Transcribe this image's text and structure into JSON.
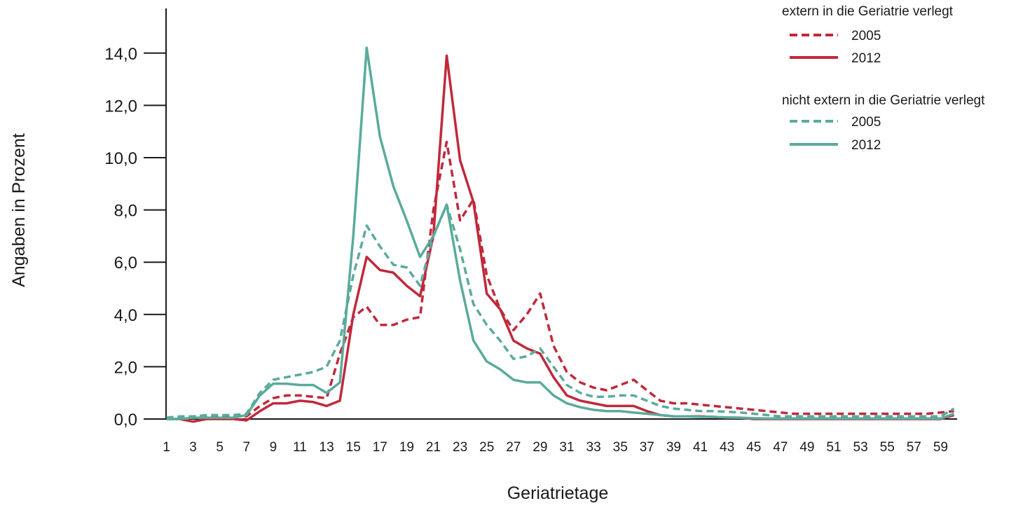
{
  "chart_data": {
    "type": "line",
    "title": "",
    "xlabel": "Geriatrietage",
    "ylabel": "Angaben in Prozent",
    "xlim": [
      1,
      60
    ],
    "ylim": [
      0,
      15
    ],
    "x_ticks": [
      "1",
      "3",
      "5",
      "7",
      "9",
      "11",
      "13",
      "15",
      "17",
      "19",
      "21",
      "23",
      "25",
      "27",
      "29",
      "31",
      "33",
      "35",
      "37",
      "39",
      "41",
      "43",
      "45",
      "47",
      "49",
      "51",
      "53",
      "55",
      "57",
      "59"
    ],
    "y_ticks": [
      {
        "value": 0,
        "label": "0,0"
      },
      {
        "value": 2,
        "label": "2,0"
      },
      {
        "value": 4,
        "label": "4,0"
      },
      {
        "value": 6,
        "label": "6,0"
      },
      {
        "value": 8,
        "label": "8,0"
      },
      {
        "value": 10,
        "label": "10,0"
      },
      {
        "value": 12,
        "label": "12,0"
      },
      {
        "value": 14,
        "label": "14,0"
      }
    ],
    "grid": false,
    "legend": {
      "placement": "top-right",
      "groups": [
        {
          "title": "extern in die Geriatrie verlegt",
          "entries": [
            "2005",
            "2012"
          ]
        },
        {
          "title": "nicht extern in die Geriatrie verlegt",
          "entries": [
            "2005",
            "2012"
          ]
        }
      ]
    },
    "colors": {
      "extern": "#c0293b",
      "nicht_extern": "#5aab9b"
    },
    "series": [
      {
        "name": "2005",
        "group": "extern in die Geriatrie verlegt",
        "style": "dashed",
        "color": "#c0293b",
        "x": [
          1,
          2,
          3,
          4,
          5,
          6,
          7,
          8,
          9,
          10,
          11,
          12,
          13,
          14,
          15,
          16,
          17,
          18,
          19,
          20,
          21,
          22,
          23,
          24,
          25,
          26,
          27,
          28,
          29,
          30,
          31,
          32,
          33,
          34,
          35,
          36,
          37,
          38,
          39,
          40,
          41,
          42,
          43,
          44,
          45,
          46,
          47,
          48,
          49,
          50,
          51,
          52,
          53,
          54,
          55,
          56,
          57,
          58,
          59,
          60
        ],
        "y": [
          0.0,
          0.05,
          0.1,
          0.1,
          0.1,
          0.1,
          0.1,
          0.5,
          0.8,
          0.9,
          0.9,
          0.85,
          0.8,
          2.5,
          3.9,
          4.3,
          3.6,
          3.6,
          3.8,
          3.9,
          8.0,
          10.6,
          7.6,
          8.4,
          5.5,
          4.2,
          3.4,
          4.0,
          4.8,
          2.8,
          1.8,
          1.4,
          1.2,
          1.1,
          1.3,
          1.5,
          1.1,
          0.7,
          0.6,
          0.6,
          0.55,
          0.5,
          0.45,
          0.4,
          0.35,
          0.3,
          0.25,
          0.2,
          0.2,
          0.2,
          0.2,
          0.2,
          0.2,
          0.2,
          0.2,
          0.2,
          0.2,
          0.2,
          0.25,
          0.3
        ]
      },
      {
        "name": "2012",
        "group": "extern in die Geriatrie verlegt",
        "style": "solid",
        "color": "#c0293b",
        "x": [
          1,
          2,
          3,
          4,
          5,
          6,
          7,
          8,
          9,
          10,
          11,
          12,
          13,
          14,
          15,
          16,
          17,
          18,
          19,
          20,
          21,
          22,
          23,
          24,
          25,
          26,
          27,
          28,
          29,
          30,
          31,
          32,
          33,
          34,
          35,
          36,
          37,
          38,
          39,
          40,
          41,
          42,
          43,
          44,
          45,
          46,
          47,
          48,
          49,
          50,
          51,
          52,
          53,
          54,
          55,
          56,
          57,
          58,
          59,
          60
        ],
        "y": [
          0.0,
          0.0,
          -0.1,
          0.0,
          0.0,
          0.0,
          -0.05,
          0.3,
          0.6,
          0.6,
          0.7,
          0.65,
          0.5,
          0.7,
          4.0,
          6.2,
          5.7,
          5.6,
          5.1,
          4.7,
          7.0,
          13.9,
          9.9,
          8.3,
          4.8,
          4.2,
          3.0,
          2.7,
          2.5,
          1.6,
          0.9,
          0.7,
          0.6,
          0.5,
          0.5,
          0.5,
          0.3,
          0.15,
          0.1,
          0.1,
          0.1,
          0.08,
          0.05,
          0.05,
          0.0,
          0.0,
          0.0,
          0.0,
          0.0,
          0.0,
          0.0,
          0.0,
          0.0,
          0.0,
          0.0,
          0.0,
          0.0,
          0.0,
          0.0,
          0.15
        ]
      },
      {
        "name": "2005",
        "group": "nicht extern in die Geriatrie verlegt",
        "style": "dashed",
        "color": "#5aab9b",
        "x": [
          1,
          2,
          3,
          4,
          5,
          6,
          7,
          8,
          9,
          10,
          11,
          12,
          13,
          14,
          15,
          16,
          17,
          18,
          19,
          20,
          21,
          22,
          23,
          24,
          25,
          26,
          27,
          28,
          29,
          30,
          31,
          32,
          33,
          34,
          35,
          36,
          37,
          38,
          39,
          40,
          41,
          42,
          43,
          44,
          45,
          46,
          47,
          48,
          49,
          50,
          51,
          52,
          53,
          54,
          55,
          56,
          57,
          58,
          59,
          60
        ],
        "y": [
          0.05,
          0.1,
          0.1,
          0.15,
          0.15,
          0.15,
          0.2,
          1.0,
          1.5,
          1.6,
          1.7,
          1.8,
          2.0,
          3.0,
          5.5,
          7.4,
          6.6,
          5.9,
          5.8,
          5.1,
          7.0,
          8.2,
          6.5,
          4.4,
          3.6,
          3.0,
          2.3,
          2.4,
          2.7,
          2.0,
          1.3,
          1.0,
          0.85,
          0.85,
          0.9,
          0.9,
          0.7,
          0.5,
          0.4,
          0.35,
          0.3,
          0.3,
          0.28,
          0.25,
          0.2,
          0.15,
          0.1,
          0.1,
          0.1,
          0.1,
          0.1,
          0.1,
          0.1,
          0.1,
          0.1,
          0.1,
          0.1,
          0.1,
          0.1,
          0.4
        ]
      },
      {
        "name": "2012",
        "group": "nicht extern in die Geriatrie verlegt",
        "style": "solid",
        "color": "#5aab9b",
        "x": [
          1,
          2,
          3,
          4,
          5,
          6,
          7,
          8,
          9,
          10,
          11,
          12,
          13,
          14,
          15,
          16,
          17,
          18,
          19,
          20,
          21,
          22,
          23,
          24,
          25,
          26,
          27,
          28,
          29,
          30,
          31,
          32,
          33,
          34,
          35,
          36,
          37,
          38,
          39,
          40,
          41,
          42,
          43,
          44,
          45,
          46,
          47,
          48,
          49,
          50,
          51,
          52,
          53,
          54,
          55,
          56,
          57,
          58,
          59,
          60
        ],
        "y": [
          0.0,
          0.0,
          0.05,
          0.05,
          0.05,
          0.05,
          0.15,
          0.9,
          1.35,
          1.35,
          1.3,
          1.3,
          1.0,
          1.4,
          7.0,
          14.2,
          10.8,
          8.9,
          7.6,
          6.2,
          7.0,
          8.2,
          5.3,
          3.0,
          2.2,
          1.9,
          1.5,
          1.4,
          1.4,
          0.9,
          0.6,
          0.45,
          0.35,
          0.3,
          0.3,
          0.25,
          0.2,
          0.15,
          0.1,
          0.1,
          0.08,
          0.08,
          0.06,
          0.05,
          0.03,
          0.02,
          0.02,
          0.02,
          0.02,
          0.02,
          0.02,
          0.02,
          0.02,
          0.02,
          0.02,
          0.02,
          0.02,
          0.02,
          0.02,
          0.2
        ]
      }
    ]
  }
}
